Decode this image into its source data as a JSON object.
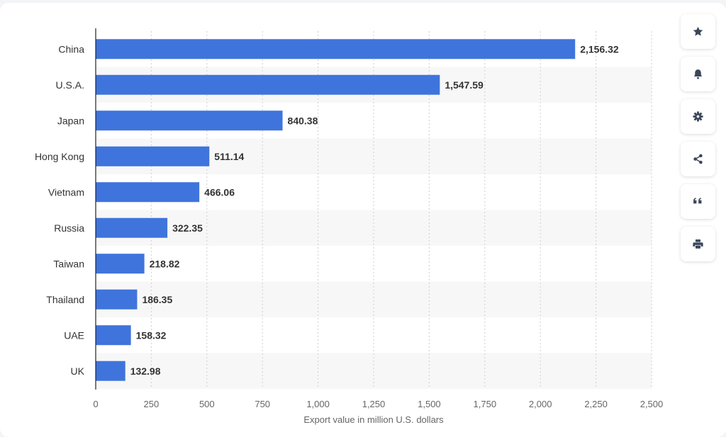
{
  "chart_data": {
    "type": "bar",
    "orientation": "horizontal",
    "categories": [
      "China",
      "U.S.A.",
      "Japan",
      "Hong Kong",
      "Vietnam",
      "Russia",
      "Taiwan",
      "Thailand",
      "UAE",
      "UK"
    ],
    "values": [
      2156.32,
      1547.59,
      840.38,
      511.14,
      466.06,
      322.35,
      218.82,
      186.35,
      158.32,
      132.98
    ],
    "value_labels": [
      "2,156.32",
      "1,547.59",
      "840.38",
      "511.14",
      "466.06",
      "322.35",
      "218.82",
      "186.35",
      "158.32",
      "132.98"
    ],
    "xlabel": "Export value in million U.S. dollars",
    "ylabel": "",
    "xlim": [
      0,
      2500
    ],
    "x_ticks": [
      0,
      250,
      500,
      750,
      1000,
      1250,
      1500,
      1750,
      2000,
      2250,
      2500
    ],
    "x_tick_labels": [
      "0",
      "250",
      "500",
      "750",
      "1,000",
      "1,250",
      "1,500",
      "1,750",
      "2,000",
      "2,250",
      "2,500"
    ],
    "grid": true,
    "bar_color": "#3f74dc"
  },
  "toolbar": {
    "items": [
      {
        "name": "favorite",
        "icon": "star-icon"
      },
      {
        "name": "notification",
        "icon": "bell-icon"
      },
      {
        "name": "settings",
        "icon": "gear-icon"
      },
      {
        "name": "share",
        "icon": "share-icon"
      },
      {
        "name": "cite",
        "icon": "quote-icon"
      },
      {
        "name": "print",
        "icon": "printer-icon"
      }
    ]
  }
}
